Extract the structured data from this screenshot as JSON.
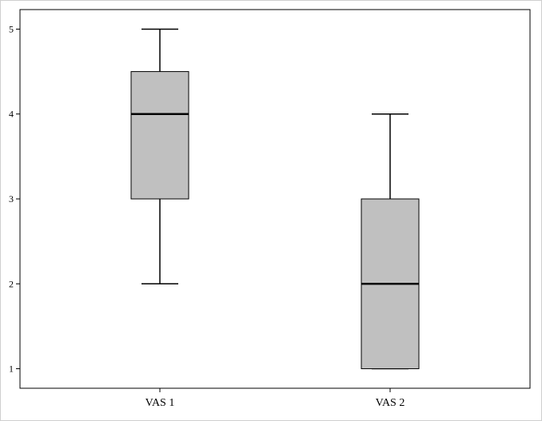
{
  "chart_data": {
    "type": "box",
    "title": "",
    "xlabel": "",
    "ylabel": "",
    "categories": [
      "VAS 1",
      "VAS 2"
    ],
    "series": [
      {
        "boxes": [
          {
            "category": "VAS 1",
            "whisker_low": 2,
            "q1": 3,
            "median": 4,
            "q3": 4.5,
            "whisker_high": 5
          },
          {
            "category": "VAS 2",
            "whisker_low": 1,
            "q1": 1,
            "median": 2,
            "q3": 3,
            "whisker_high": 4
          }
        ]
      }
    ],
    "yticks": [
      1,
      2,
      3,
      4,
      5
    ],
    "ytick_labels": [
      "1",
      "2",
      "3",
      "4",
      "5"
    ],
    "ylim": [
      0.77,
      5.23
    ],
    "grid": false,
    "colors": {
      "box_fill": "#c0c0c0",
      "box_stroke": "#000000",
      "plot_border": "#000000",
      "frame": "#cfcfcf"
    }
  }
}
